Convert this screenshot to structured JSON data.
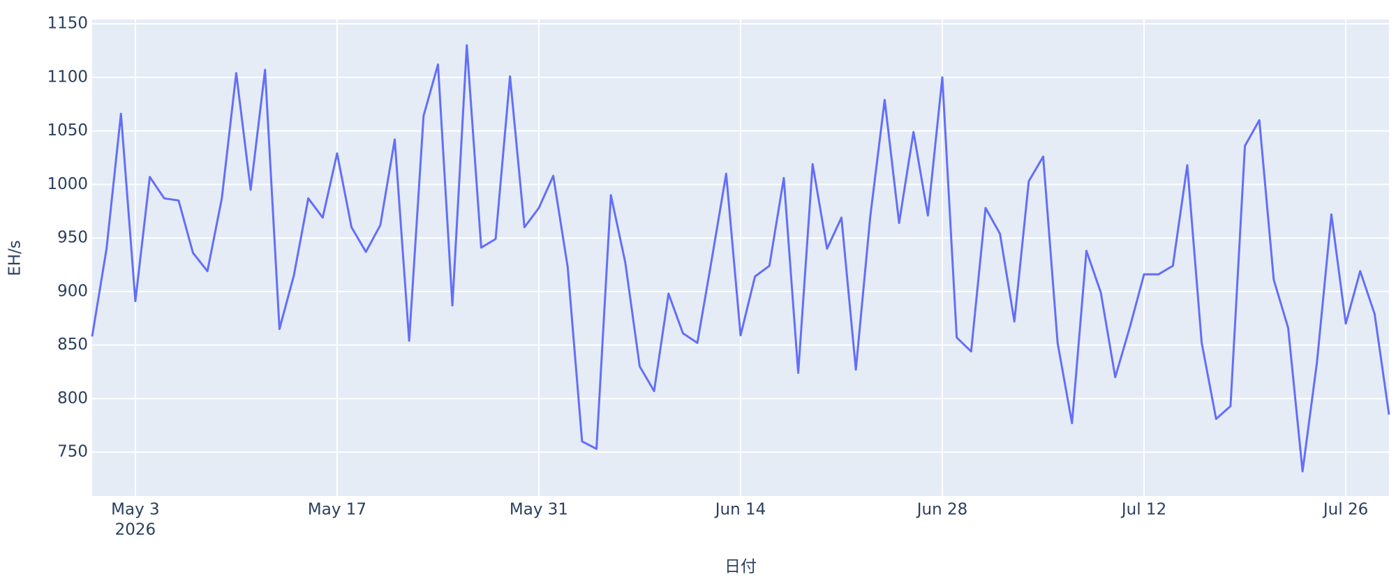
{
  "chart_data": {
    "type": "line",
    "x_title": "日付",
    "y_title": "EH/s",
    "x": [
      "2026-04-30",
      "2026-05-01",
      "2026-05-02",
      "2026-05-03",
      "2026-05-04",
      "2026-05-05",
      "2026-05-06",
      "2026-05-07",
      "2026-05-08",
      "2026-05-09",
      "2026-05-10",
      "2026-05-11",
      "2026-05-12",
      "2026-05-13",
      "2026-05-14",
      "2026-05-15",
      "2026-05-16",
      "2026-05-17",
      "2026-05-18",
      "2026-05-19",
      "2026-05-20",
      "2026-05-21",
      "2026-05-22",
      "2026-05-23",
      "2026-05-24",
      "2026-05-25",
      "2026-05-26",
      "2026-05-27",
      "2026-05-28",
      "2026-05-29",
      "2026-05-30",
      "2026-05-31",
      "2026-06-01",
      "2026-06-02",
      "2026-06-03",
      "2026-06-04",
      "2026-06-05",
      "2026-06-06",
      "2026-06-07",
      "2026-06-08",
      "2026-06-09",
      "2026-06-10",
      "2026-06-11",
      "2026-06-12",
      "2026-06-13",
      "2026-06-14",
      "2026-06-15",
      "2026-06-16",
      "2026-06-17",
      "2026-06-18",
      "2026-06-19",
      "2026-06-20",
      "2026-06-21",
      "2026-06-22",
      "2026-06-23",
      "2026-06-24",
      "2026-06-25",
      "2026-06-26",
      "2026-06-27",
      "2026-06-28",
      "2026-06-29",
      "2026-06-30",
      "2026-07-01",
      "2026-07-02",
      "2026-07-03",
      "2026-07-04",
      "2026-07-05",
      "2026-07-06",
      "2026-07-07",
      "2026-07-08",
      "2026-07-09",
      "2026-07-10",
      "2026-07-11",
      "2026-07-12",
      "2026-07-13",
      "2026-07-14",
      "2026-07-15",
      "2026-07-16",
      "2026-07-17",
      "2026-07-18",
      "2026-07-19",
      "2026-07-20",
      "2026-07-21",
      "2026-07-22",
      "2026-07-23",
      "2026-07-24",
      "2026-07-25",
      "2026-07-26",
      "2026-07-27",
      "2026-07-28",
      "2026-07-29"
    ],
    "series": [
      {
        "name": "EH/s",
        "color": "#636efa",
        "values": [
          858,
          940,
          1066,
          891,
          1007,
          987,
          985,
          936,
          919,
          987,
          1104,
          995,
          1107,
          865,
          915,
          987,
          969,
          1029,
          960,
          937,
          962,
          1042,
          854,
          1064,
          1112,
          887,
          1130,
          941,
          949,
          1101,
          960,
          978,
          1008,
          923,
          760,
          753,
          990,
          927,
          830,
          807,
          898,
          861,
          852,
          930,
          1010,
          859,
          914,
          924,
          1006,
          824,
          1019,
          940,
          969,
          827,
          970,
          1079,
          964,
          1049,
          971,
          1100,
          857,
          844,
          978,
          954,
          872,
          1003,
          1026,
          852,
          777,
          938,
          899,
          820,
          866,
          916,
          916,
          924,
          1018,
          852,
          781,
          793,
          1036,
          1060,
          911,
          866,
          732,
          834,
          972,
          870,
          919,
          879,
          785
        ]
      }
    ],
    "xlim": [
      "2026-04-30",
      "2026-07-29"
    ],
    "xticks": [
      {
        "value": "2026-05-03",
        "label": "May 3"
      },
      {
        "value": "2026-05-17",
        "label": "May 17"
      },
      {
        "value": "2026-05-31",
        "label": "May 31"
      },
      {
        "value": "2026-06-14",
        "label": "Jun 14"
      },
      {
        "value": "2026-06-28",
        "label": "Jun 28"
      },
      {
        "value": "2026-07-12",
        "label": "Jul 12"
      },
      {
        "value": "2026-07-26",
        "label": "Jul 26"
      }
    ],
    "x_year_label": "2026",
    "ylim": [
      709,
      1154
    ],
    "yticks": [
      750,
      800,
      850,
      900,
      950,
      1000,
      1050,
      1100,
      1150
    ],
    "grid": true,
    "background": "#e5ecf6"
  }
}
